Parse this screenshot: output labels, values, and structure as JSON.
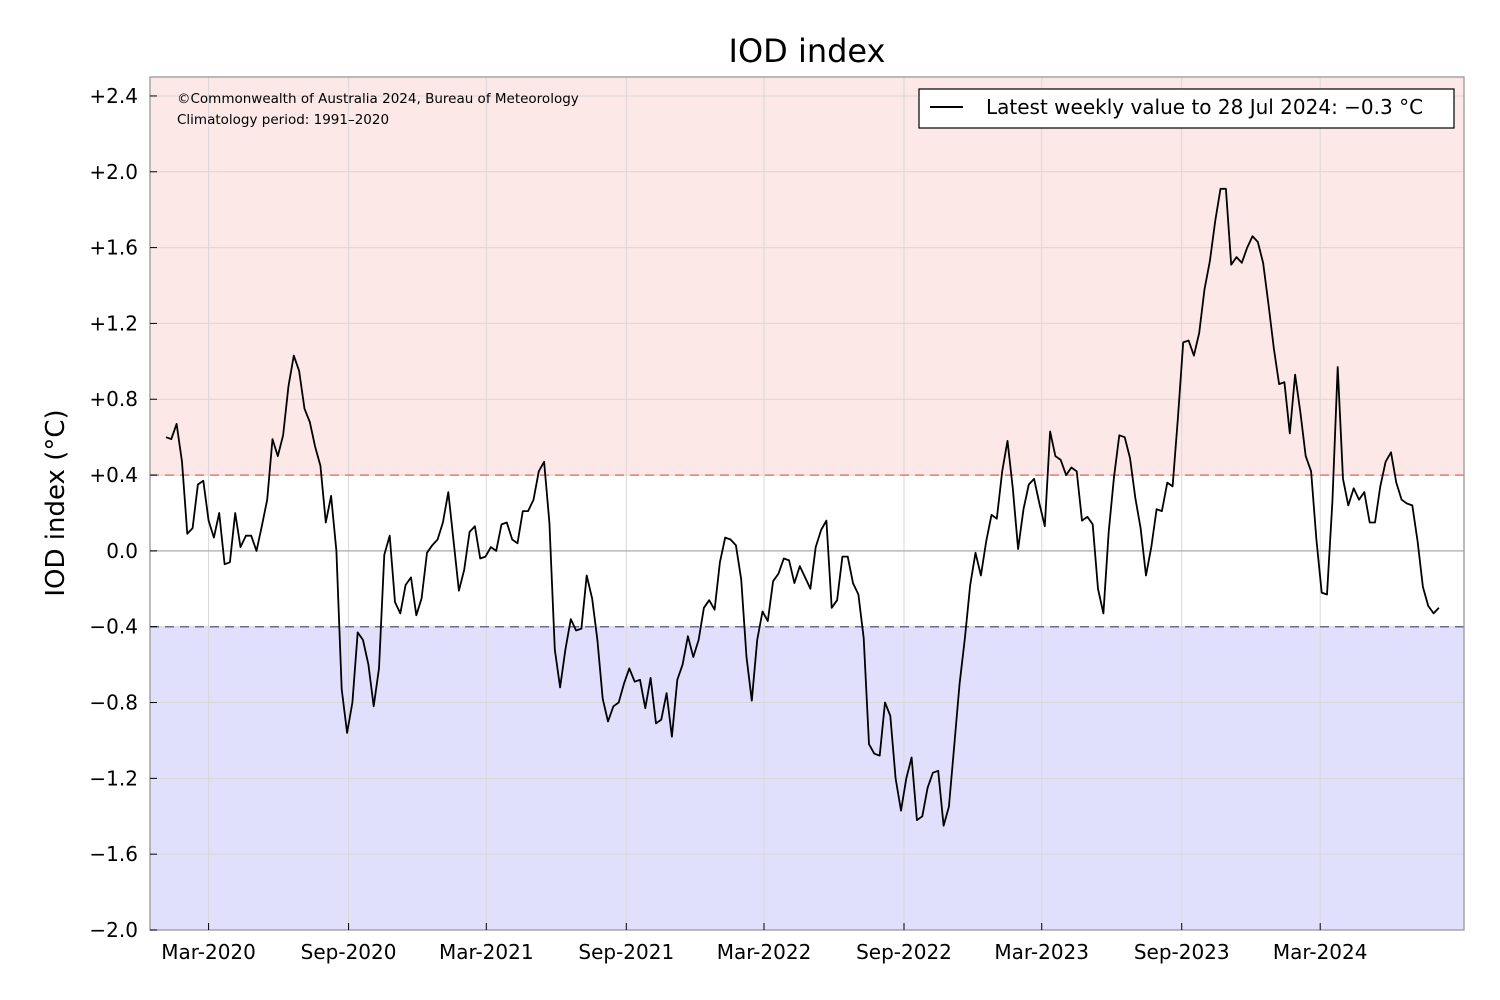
{
  "chart_data": {
    "type": "line",
    "title": "IOD index",
    "ylabel": "IOD index (°C)",
    "xlabel": "",
    "ylim": [
      -2.0,
      2.5
    ],
    "xlim": [
      "2019-12-15",
      "2024-09-06"
    ],
    "x_tick_labels": [
      "Mar-2020",
      "Sep-2020",
      "Mar-2021",
      "Sep-2021",
      "Mar-2022",
      "Sep-2022",
      "Mar-2023",
      "Sep-2023",
      "Mar-2024"
    ],
    "x_tick_dates": [
      "2020-03-01",
      "2020-09-01",
      "2021-03-01",
      "2021-09-01",
      "2022-03-01",
      "2022-09-01",
      "2023-03-01",
      "2023-09-01",
      "2024-03-01"
    ],
    "y_ticks": [
      -2.0,
      -1.6,
      -1.2,
      -0.8,
      -0.4,
      0.0,
      0.4,
      0.8,
      1.2,
      1.6,
      2.0,
      2.4
    ],
    "y_tick_labels": [
      "−2.0",
      "−1.6",
      "−1.2",
      "−0.8",
      "−0.4",
      "0.0",
      "+0.4",
      "+0.8",
      "+1.2",
      "+1.6",
      "+2.0",
      "+2.4"
    ],
    "thresholds": {
      "positive": 0.4,
      "negative": -0.4
    },
    "grid": true,
    "legend_position": "top-right",
    "legend_label": "Latest weekly value to 28 Jul 2024: −0.3 °C",
    "annotations": [
      "©Commonwealth of Australia 2024, Bureau of Meteorology",
      "Climatology period: 1991–2020"
    ],
    "colors": {
      "positive_region": "#fde8e8",
      "negative_region": "#e0e0fc",
      "positive_threshold": "#e87878",
      "negative_threshold": "#6a6a9a",
      "line": "#000000",
      "grid": "#d8d8d8",
      "zero_line": "#b8b8b8",
      "frame": "#999999"
    },
    "series": [
      {
        "start_date": "2020-01-05",
        "step_days": 7,
        "values": [
          0.6,
          0.59,
          0.67,
          0.47,
          0.09,
          0.12,
          0.35,
          0.37,
          0.16,
          0.07,
          0.2,
          -0.07,
          -0.06,
          0.2,
          0.02,
          0.08,
          0.08,
          0.0,
          0.13,
          0.27,
          0.59,
          0.5,
          0.61,
          0.87,
          1.03,
          0.95,
          0.75,
          0.68,
          0.55,
          0.45,
          0.15,
          0.29,
          0.0,
          -0.73,
          -0.96,
          -0.8,
          -0.43,
          -0.47,
          -0.6,
          -0.82,
          -0.62,
          -0.02,
          0.08,
          -0.27,
          -0.33,
          -0.18,
          -0.14,
          -0.34,
          -0.25,
          -0.01,
          0.03,
          0.06,
          0.15,
          0.31,
          0.05,
          -0.21,
          -0.1,
          0.1,
          0.13,
          -0.04,
          -0.03,
          0.02,
          0.0,
          0.14,
          0.15,
          0.06,
          0.04,
          0.21,
          0.21,
          0.27,
          0.42,
          0.47,
          0.15,
          -0.52,
          -0.72,
          -0.52,
          -0.36,
          -0.42,
          -0.41,
          -0.13,
          -0.25,
          -0.47,
          -0.78,
          -0.9,
          -0.82,
          -0.8,
          -0.7,
          -0.62,
          -0.69,
          -0.68,
          -0.83,
          -0.67,
          -0.91,
          -0.89,
          -0.75,
          -0.98,
          -0.68,
          -0.6,
          -0.45,
          -0.56,
          -0.47,
          -0.3,
          -0.26,
          -0.31,
          -0.06,
          0.07,
          0.06,
          0.03,
          -0.15,
          -0.56,
          -0.79,
          -0.47,
          -0.32,
          -0.37,
          -0.16,
          -0.12,
          -0.04,
          -0.05,
          -0.17,
          -0.08,
          -0.14,
          -0.2,
          0.02,
          0.11,
          0.16,
          -0.3,
          -0.26,
          -0.03,
          -0.03,
          -0.17,
          -0.23,
          -0.46,
          -1.02,
          -1.07,
          -1.08,
          -0.8,
          -0.87,
          -1.2,
          -1.37,
          -1.2,
          -1.09,
          -1.42,
          -1.4,
          -1.25,
          -1.17,
          -1.16,
          -1.45,
          -1.35,
          -1.03,
          -0.7,
          -0.46,
          -0.18,
          -0.01,
          -0.13,
          0.05,
          0.19,
          0.17,
          0.42,
          0.58,
          0.33,
          0.01,
          0.22,
          0.35,
          0.38,
          0.25,
          0.13,
          0.63,
          0.5,
          0.48,
          0.4,
          0.44,
          0.42,
          0.16,
          0.18,
          0.14,
          -0.2,
          -0.33,
          0.1,
          0.39,
          0.61,
          0.6,
          0.49,
          0.28,
          0.12,
          -0.13,
          0.02,
          0.22,
          0.21,
          0.36,
          0.34,
          0.7,
          1.1,
          1.11,
          1.03,
          1.15,
          1.38,
          1.53,
          1.74,
          1.91,
          1.91,
          1.51,
          1.55,
          1.52,
          1.6,
          1.66,
          1.63,
          1.52,
          1.3,
          1.07,
          0.88,
          0.89,
          0.62,
          0.93,
          0.73,
          0.5,
          0.42,
          0.06,
          -0.22,
          -0.23,
          0.26,
          0.97,
          0.38,
          0.24,
          0.33,
          0.27,
          0.31,
          0.15,
          0.15,
          0.34,
          0.47,
          0.52,
          0.36,
          0.27,
          0.25,
          0.24,
          0.05,
          -0.19,
          -0.29,
          -0.33,
          -0.3
        ]
      }
    ]
  }
}
